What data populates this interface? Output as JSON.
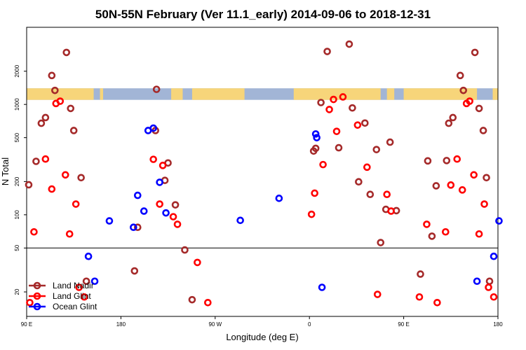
{
  "chart_data": {
    "type": "scatter",
    "title": "50N-55N February (Ver 11.1_early)   2014-09-06 to 2018-12-31",
    "xlabel": "Longitude (deg E)",
    "ylabel": "N Total",
    "x_scale": "linear",
    "y_scale": "log",
    "xlim": [
      90,
      540
    ],
    "ylim": [
      12,
      5000
    ],
    "x_ticks": [
      {
        "value": 90,
        "label": "90 E"
      },
      {
        "value": 180,
        "label": "180"
      },
      {
        "value": 270,
        "label": "90 W"
      },
      {
        "value": 360,
        "label": "0"
      },
      {
        "value": 450,
        "label": "90 E"
      },
      {
        "value": 540,
        "label": "180"
      }
    ],
    "y_ticks": [
      {
        "value": 20,
        "label": "20"
      },
      {
        "value": 50,
        "label": "50"
      },
      {
        "value": 100,
        "label": "100"
      },
      {
        "value": 200,
        "label": "200"
      },
      {
        "value": 500,
        "label": "500"
      },
      {
        "value": 1000,
        "label": "1000"
      },
      {
        "value": 2000,
        "label": "2000"
      }
    ],
    "separator_y": 50,
    "land_band": {
      "y_low": 1100,
      "y_high": 1400,
      "ocean_color": "#a2b5d6",
      "land_color": "#f7d57a",
      "land_segments": [
        [
          90,
          154
        ],
        [
          160,
          163
        ],
        [
          228,
          239
        ],
        [
          248,
          298
        ],
        [
          345,
          428
        ],
        [
          434,
          441
        ],
        [
          450,
          520
        ],
        [
          535,
          540
        ]
      ]
    },
    "legend": {
      "position": "bottom-left"
    },
    "series": [
      {
        "name": "Land Nadir",
        "color": "#a52a2a",
        "points": [
          [
            92,
            187
          ],
          [
            99,
            305
          ],
          [
            104,
            675
          ],
          [
            108,
            760
          ],
          [
            114,
            1830
          ],
          [
            117,
            1340
          ],
          [
            128,
            2960
          ],
          [
            132,
            920
          ],
          [
            135,
            580
          ],
          [
            142,
            217
          ],
          [
            196,
            77
          ],
          [
            213,
            580
          ],
          [
            214,
            1370
          ],
          [
            222,
            205
          ],
          [
            225,
            295
          ],
          [
            232,
            123
          ],
          [
            241,
            48
          ],
          [
            248,
            17
          ],
          [
            364,
            378
          ],
          [
            366,
            400
          ],
          [
            371,
            1040
          ],
          [
            377,
            3020
          ],
          [
            388,
            405
          ],
          [
            398,
            3520
          ],
          [
            401,
            930
          ],
          [
            407,
            199
          ],
          [
            413,
            678
          ],
          [
            418,
            153
          ],
          [
            424,
            390
          ],
          [
            428,
            56
          ],
          [
            433,
            112
          ],
          [
            437,
            455
          ],
          [
            443,
            109
          ],
          [
            466,
            29
          ],
          [
            473,
            308
          ],
          [
            477,
            64
          ],
          [
            481,
            183
          ],
          [
            491,
            310
          ],
          [
            493,
            675
          ],
          [
            497,
            760
          ],
          [
            504,
            1830
          ],
          [
            507,
            1340
          ],
          [
            518,
            2960
          ],
          [
            522,
            920
          ],
          [
            526,
            580
          ],
          [
            529,
            217
          ],
          [
            532,
            25
          ],
          [
            193,
            31
          ],
          [
            147,
            25
          ]
        ]
      },
      {
        "name": "Land Glint",
        "color": "#ff0000",
        "points": [
          [
            93,
            16
          ],
          [
            97,
            70
          ],
          [
            108,
            320
          ],
          [
            114,
            171
          ],
          [
            118,
            1020
          ],
          [
            122,
            1070
          ],
          [
            127,
            230
          ],
          [
            131,
            67
          ],
          [
            137,
            125
          ],
          [
            140,
            22
          ],
          [
            145,
            18
          ],
          [
            211,
            318
          ],
          [
            217,
            125
          ],
          [
            220,
            280
          ],
          [
            230,
            96
          ],
          [
            234,
            82
          ],
          [
            253,
            37
          ],
          [
            263,
            16
          ],
          [
            362,
            101
          ],
          [
            365,
            157
          ],
          [
            373,
            285
          ],
          [
            379,
            900
          ],
          [
            383,
            1110
          ],
          [
            386,
            570
          ],
          [
            392,
            1170
          ],
          [
            406,
            650
          ],
          [
            415,
            270
          ],
          [
            425,
            19
          ],
          [
            434,
            153
          ],
          [
            438,
            108
          ],
          [
            465,
            18
          ],
          [
            472,
            82
          ],
          [
            482,
            16
          ],
          [
            490,
            70
          ],
          [
            495,
            186
          ],
          [
            501,
            320
          ],
          [
            506,
            168
          ],
          [
            510,
            1020
          ],
          [
            513,
            1070
          ],
          [
            517,
            230
          ],
          [
            522,
            67
          ],
          [
            527,
            125
          ],
          [
            531,
            22
          ],
          [
            536,
            18
          ]
        ]
      },
      {
        "name": "Ocean Glint",
        "color": "#0000ff",
        "points": [
          [
            149,
            42
          ],
          [
            155,
            25
          ],
          [
            169,
            88
          ],
          [
            192,
            77
          ],
          [
            196,
            150
          ],
          [
            202,
            108
          ],
          [
            206,
            580
          ],
          [
            211,
            610
          ],
          [
            217,
            197
          ],
          [
            223,
            104
          ],
          [
            294,
            89
          ],
          [
            331,
            141
          ],
          [
            366,
            540
          ],
          [
            367,
            500
          ],
          [
            372,
            22
          ],
          [
            520,
            25
          ],
          [
            536,
            42
          ],
          [
            541,
            88
          ]
        ]
      }
    ]
  }
}
